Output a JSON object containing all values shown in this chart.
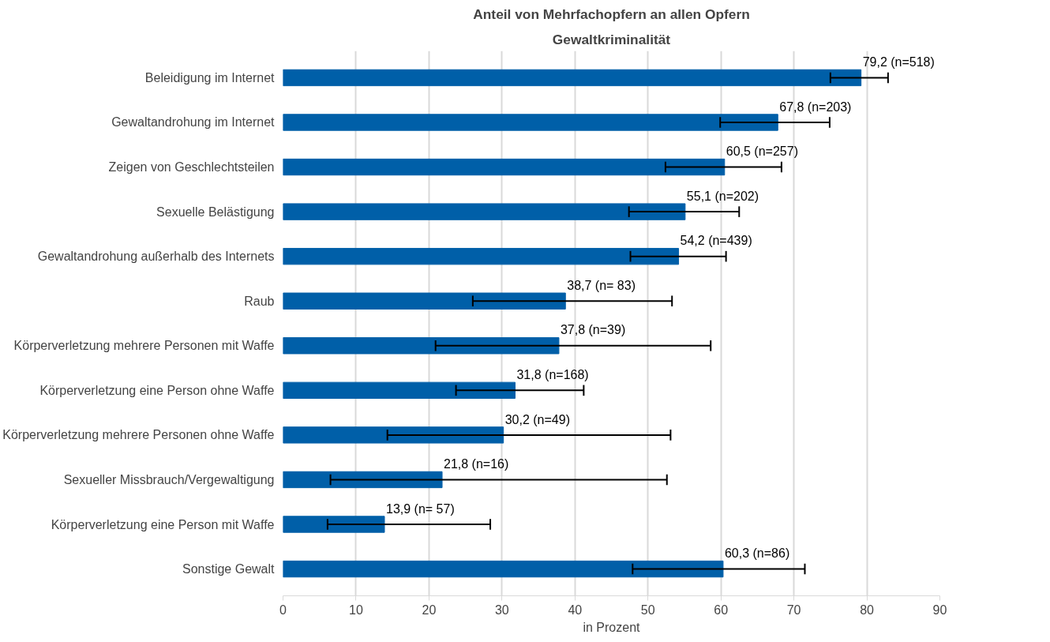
{
  "chart_data": {
    "type": "bar",
    "orientation": "horizontal",
    "title": "Anteil von Mehrfachopfern an allen Opfern",
    "subtitle": "Gewaltkriminalität",
    "xlabel": "in Prozent",
    "categories": [
      "Beleidigung im Internet",
      "Gewaltandrohung im Internet",
      "Zeigen von Geschlechtsteilen",
      "Sexuelle Belästigung",
      "Gewaltandrohung außerhalb des Internets",
      "Raub",
      "Körperverletzung mehrere Personen mit Waffe",
      "Körperverletzung eine Person ohne Waffe",
      "Körperverletzung mehrere Personen ohne Waffe",
      "Sexueller Missbrauch/Vergewaltigung",
      "Körperverletzung eine Person mit Waffe",
      "Sonstige Gewalt"
    ],
    "values": [
      79.2,
      67.8,
      60.5,
      55.1,
      54.2,
      38.7,
      37.8,
      31.8,
      30.2,
      21.8,
      13.9,
      60.3
    ],
    "errors": [
      [
        75.0,
        82.9
      ],
      [
        59.9,
        74.9
      ],
      [
        52.4,
        68.3
      ],
      [
        47.4,
        62.5
      ],
      [
        47.6,
        60.7
      ],
      [
        26.0,
        53.3
      ],
      [
        20.9,
        58.6
      ],
      [
        23.7,
        41.2
      ],
      [
        14.3,
        53.1
      ],
      [
        6.5,
        52.6
      ],
      [
        6.1,
        28.4
      ],
      [
        47.9,
        71.5
      ]
    ],
    "value_labels": [
      "79,2 (n=518)",
      "67,8 (n=203)",
      "60,5 (n=257)",
      "55,1 (n=202)",
      "54,2 (n=439)",
      "38,7 (n= 83)",
      "37,8 (n=39)",
      "31,8 (n=168)",
      "30,2 (n=49)",
      "21,8 (n=16)",
      "13,9 (n= 57)",
      "60,3 (n=86)"
    ],
    "color": "#005fa8",
    "xlim": [
      0,
      90
    ],
    "xticks": [
      0,
      10,
      20,
      30,
      40,
      50,
      60,
      70,
      80,
      90
    ],
    "grid": "x"
  }
}
